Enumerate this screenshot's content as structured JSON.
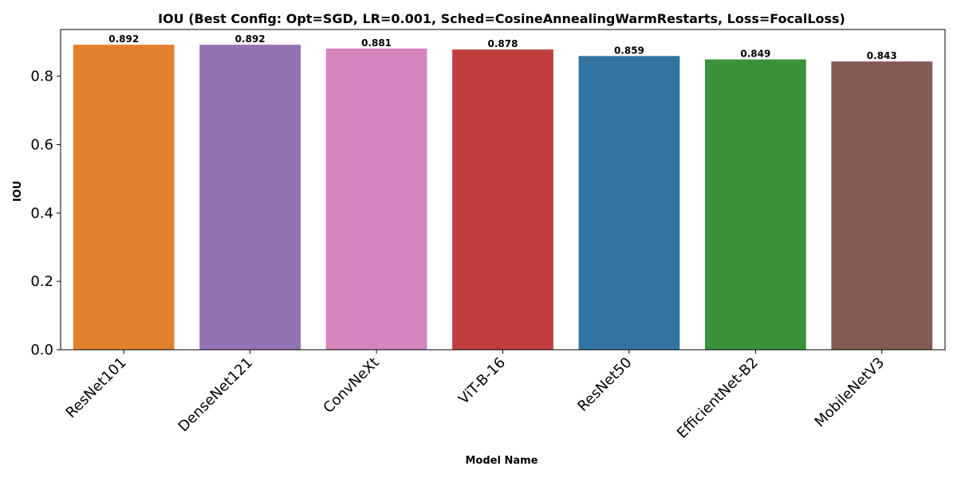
{
  "chart_data": {
    "type": "bar",
    "title": "IOU (Best Config: Opt=SGD, LR=0.001, Sched=CosineAnnealingWarmRestarts, Loss=FocalLoss)",
    "xlabel": "Model Name",
    "ylabel": "IOU",
    "categories": [
      "ResNet101",
      "DenseNet121",
      "ConvNeXt",
      "ViT-B-16",
      "ResNet50",
      "EfficientNet-B2",
      "MobileNetV3"
    ],
    "values": [
      0.892,
      0.892,
      0.881,
      0.878,
      0.859,
      0.849,
      0.843
    ],
    "data_labels": [
      "0.892",
      "0.892",
      "0.881",
      "0.878",
      "0.859",
      "0.849",
      "0.843"
    ],
    "colors": [
      "#e1812c",
      "#9372b2",
      "#d684bd",
      "#c03d3e",
      "#3274a1",
      "#3a923a",
      "#845b53"
    ],
    "ylim": [
      0,
      0.9366
    ],
    "yticks": [
      0.0,
      0.2,
      0.4,
      0.6,
      0.8
    ],
    "ytick_labels": [
      "0.0",
      "0.2",
      "0.4",
      "0.6",
      "0.8"
    ],
    "grid": false,
    "legend": "none"
  }
}
